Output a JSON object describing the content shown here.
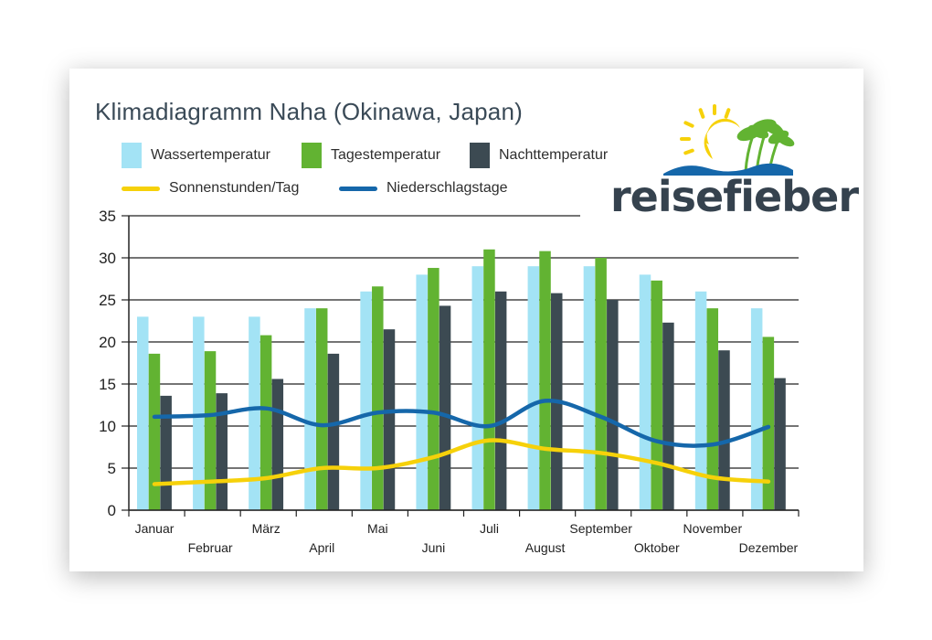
{
  "chart_data": {
    "type": "bar",
    "title": "Klimadiagramm Naha (Okinawa, Japan)",
    "categories": [
      "Januar",
      "Februar",
      "März",
      "April",
      "Mai",
      "Juni",
      "Juli",
      "August",
      "September",
      "Oktober",
      "November",
      "Dezember"
    ],
    "series": [
      {
        "name": "Wassertemperatur",
        "kind": "bar",
        "color": "#a3e3f5",
        "values": [
          23,
          23,
          23,
          24,
          26,
          28,
          29,
          29,
          29,
          28,
          26,
          24
        ]
      },
      {
        "name": "Tagestemperatur",
        "kind": "bar",
        "color": "#62b332",
        "values": [
          18.6,
          18.9,
          20.8,
          24,
          26.6,
          28.8,
          31,
          30.8,
          30,
          27.3,
          24,
          20.6
        ]
      },
      {
        "name": "Nachttemperatur",
        "kind": "bar",
        "color": "#3c4a52",
        "values": [
          13.6,
          13.9,
          15.6,
          18.6,
          21.5,
          24.3,
          26,
          25.8,
          25,
          22.3,
          19,
          15.7
        ]
      },
      {
        "name": "Sonnenstunden/Tag",
        "kind": "line",
        "color": "#f6d10a",
        "values": [
          3.1,
          3.4,
          3.8,
          5.0,
          5.0,
          6.3,
          8.3,
          7.3,
          6.8,
          5.6,
          3.9,
          3.4
        ]
      },
      {
        "name": "Niederschlagstage",
        "kind": "line",
        "color": "#1567aa",
        "values": [
          11.1,
          11.3,
          12.1,
          10.1,
          11.6,
          11.6,
          10.0,
          13.0,
          11.1,
          8.2,
          7.8,
          9.9
        ]
      }
    ],
    "ylim": [
      0,
      35
    ],
    "yticks": [
      0,
      5,
      10,
      15,
      20,
      25,
      30,
      35
    ],
    "grid": true,
    "legend_position": "top-left"
  },
  "logo": {
    "text": "reisefieber",
    "colors": {
      "sun": "#f6d10a",
      "palm": "#62b332",
      "wave": "#1567aa",
      "text": "#35424e"
    }
  }
}
